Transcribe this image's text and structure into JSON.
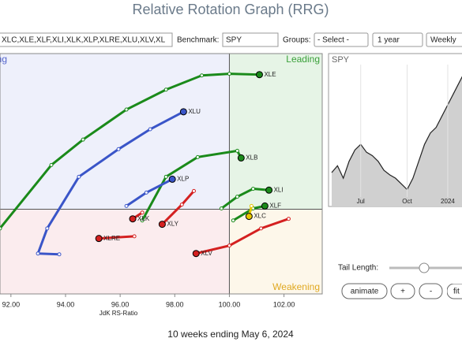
{
  "header": {
    "title": "Relative Rotation Graph (RRG)"
  },
  "controls": {
    "symbols": "XLC,XLE,XLF,XLI,XLK,XLP,XLRE,XLU,XLV,XL",
    "benchmark_label": "Benchmark:",
    "benchmark": "SPY",
    "groups_label": "Groups:",
    "groups": "- Select -",
    "period": "1 year",
    "frequency": "Weekly"
  },
  "chart_data": [
    {
      "type": "rrg",
      "x_label": "JdK RS-Ratio",
      "quadrants": {
        "improving": "Improving",
        "leading": "Leading",
        "weakening": "Weakening"
      },
      "center": 100,
      "xlim": [
        91.6,
        103.4
      ],
      "ylim": [
        96.9,
        105.7
      ],
      "xticks": [
        {
          "value": 92,
          "label": "92.00"
        },
        {
          "value": 94,
          "label": "94.00"
        },
        {
          "value": 96,
          "label": "96.00"
        },
        {
          "value": 98,
          "label": "98.00"
        },
        {
          "value": 100,
          "label": "100.00"
        },
        {
          "value": 102,
          "label": "102.00"
        }
      ],
      "series": [
        {
          "name": "XLE",
          "color": "#1a8a1a",
          "x": [
            91.6,
            93.48,
            94.64,
            96.23,
            97.68,
            98.99,
            100,
            101.1
          ],
          "y": [
            99.3,
            101.62,
            102.55,
            103.65,
            104.38,
            104.9,
            104.96,
            104.93
          ]
        },
        {
          "name": "XLU",
          "color": "#3a55c8",
          "x": [
            93.77,
            92.99,
            93.33,
            94.49,
            95.94,
            97.1,
            98.32
          ],
          "y": [
            98.35,
            98.38,
            99.3,
            101.19,
            102.2,
            102.93,
            103.57
          ]
        },
        {
          "name": "XLB",
          "color": "#1a8a1a",
          "x": [
            96.81,
            97.68,
            98.84,
            100.29,
            100.43
          ],
          "y": [
            99.59,
            101.19,
            101.91,
            102.14,
            101.88
          ]
        },
        {
          "name": "XLI",
          "color": "#1a8a1a",
          "x": [
            99.71,
            100.29,
            100.87,
            101.45
          ],
          "y": [
            100.03,
            100.46,
            100.75,
            100.7
          ]
        },
        {
          "name": "XLF",
          "color": "#1a8a1a",
          "x": [
            100.14,
            100.87,
            101.3
          ],
          "y": [
            99.59,
            100.03,
            100.12
          ]
        },
        {
          "name": "XLC",
          "color": "#e6c700",
          "x": [
            100.81,
            100.72
          ],
          "y": [
            100.12,
            99.74
          ]
        },
        {
          "name": "XLP",
          "color": "#3a55c8",
          "x": [
            96.23,
            96.96,
            97.91
          ],
          "y": [
            100.12,
            100.61,
            101.1
          ]
        },
        {
          "name": "XLY",
          "color": "#d42020",
          "x": [
            98.7,
            98.26,
            97.54
          ],
          "y": [
            100.67,
            100.17,
            99.45
          ]
        },
        {
          "name": "XLK",
          "color": "#d42020",
          "x": [
            96.81,
            96.46
          ],
          "y": [
            99.88,
            99.65
          ]
        },
        {
          "name": "XLRE",
          "color": "#d42020",
          "x": [
            96.52,
            95.22
          ],
          "y": [
            99.01,
            98.93
          ]
        },
        {
          "name": "XLV",
          "color": "#d42020",
          "x": [
            102.17,
            101.16,
            100,
            98.78
          ],
          "y": [
            99.65,
            99.3,
            98.67,
            98.38
          ]
        }
      ]
    },
    {
      "type": "line",
      "title": "SPY",
      "color": "#222222",
      "categories": [
        null,
        null,
        null,
        null,
        null,
        "Jul",
        null,
        null,
        null,
        null,
        null,
        null,
        null,
        "Oct",
        null,
        null,
        null,
        null,
        null,
        null,
        "2024",
        null,
        null,
        null
      ],
      "values": [
        430,
        436,
        425,
        440,
        450,
        455,
        448,
        445,
        440,
        432,
        428,
        425,
        420,
        415,
        425,
        440,
        455,
        465,
        470,
        480,
        490,
        500,
        510,
        520
      ],
      "ylim": [
        400,
        520
      ]
    }
  ],
  "tail_controls": {
    "label": "Tail Length:",
    "buttons": [
      "animate",
      "+",
      "-",
      "fit"
    ]
  },
  "footer": "10 weeks ending May 6, 2024"
}
